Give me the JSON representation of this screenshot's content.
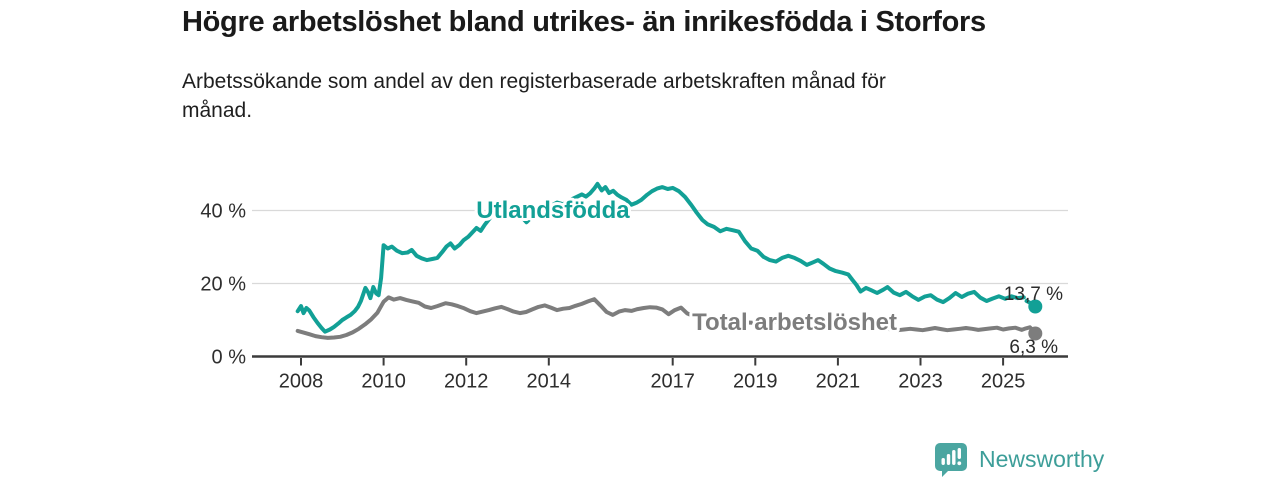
{
  "header": {
    "title": "Högre arbetslöshet bland utrikes- än inrikesfödda i Storfors",
    "subtitle": "Arbetssökande som andel av den registerbaserade arbetskraften månad för\nmånad."
  },
  "footer": {
    "brand": "Newsworthy",
    "brand_color": "#3d9e99",
    "icon": "bar-chart-speech-bubble-icon",
    "icon_color": "#4ba6a1"
  },
  "chart_data": {
    "type": "line",
    "title": "Högre arbetslöshet bland utrikes- än inrikesfödda i Storfors",
    "subtitle": "Arbetssökande som andel av den registerbaserade arbetskraften månad för månad.",
    "grid": "horizontal-gridlines-at-20-and-40",
    "legend_position": "inline-labels-on-lines",
    "x_range": [
      2007.9,
      2026.5
    ],
    "ylim": [
      0,
      50
    ],
    "axis_color": "#3b3b3b",
    "grid_color": "#d9d9d9",
    "text_color": "#2e2e2e",
    "x_ticks": [
      {
        "label": "2008",
        "year": 2008
      },
      {
        "label": "2010",
        "year": 2010
      },
      {
        "label": "2012",
        "year": 2012
      },
      {
        "label": "2014",
        "year": 2014
      },
      {
        "label": "2017",
        "year": 2017
      },
      {
        "label": "2019",
        "year": 2019
      },
      {
        "label": "2021",
        "year": 2021
      },
      {
        "label": "2023",
        "year": 2023
      },
      {
        "label": "2025",
        "year": 2025
      }
    ],
    "y_ticks": [
      {
        "label": "0 %",
        "value": 0
      },
      {
        "label": "20 %",
        "value": 20
      },
      {
        "label": "40 %",
        "value": 40
      }
    ],
    "series": [
      {
        "name": "Utlandsfödda",
        "color": "#12a096",
        "label_pos": {
          "x": 2014.1,
          "v": 40.1
        },
        "points": [
          [
            2007.92,
            12.4
          ],
          [
            2008.0,
            13.8
          ],
          [
            2008.06,
            11.9
          ],
          [
            2008.13,
            13.3
          ],
          [
            2008.2,
            12.6
          ],
          [
            2008.3,
            10.8
          ],
          [
            2008.4,
            9.2
          ],
          [
            2008.5,
            7.8
          ],
          [
            2008.58,
            6.8
          ],
          [
            2008.7,
            7.4
          ],
          [
            2008.8,
            8.1
          ],
          [
            2008.9,
            9.0
          ],
          [
            2009.0,
            10.0
          ],
          [
            2009.1,
            10.7
          ],
          [
            2009.2,
            11.4
          ],
          [
            2009.3,
            12.4
          ],
          [
            2009.38,
            13.6
          ],
          [
            2009.45,
            15.2
          ],
          [
            2009.5,
            16.8
          ],
          [
            2009.56,
            18.8
          ],
          [
            2009.63,
            17.5
          ],
          [
            2009.68,
            16.0
          ],
          [
            2009.75,
            19.0
          ],
          [
            2009.82,
            17.3
          ],
          [
            2009.88,
            16.8
          ],
          [
            2009.94,
            21.5
          ],
          [
            2010.0,
            30.5
          ],
          [
            2010.1,
            29.6
          ],
          [
            2010.2,
            30.1
          ],
          [
            2010.32,
            29.0
          ],
          [
            2010.45,
            28.3
          ],
          [
            2010.58,
            28.5
          ],
          [
            2010.68,
            29.2
          ],
          [
            2010.8,
            27.6
          ],
          [
            2010.92,
            26.9
          ],
          [
            2011.05,
            26.4
          ],
          [
            2011.18,
            26.7
          ],
          [
            2011.3,
            27.0
          ],
          [
            2011.42,
            28.6
          ],
          [
            2011.52,
            30.1
          ],
          [
            2011.62,
            31.0
          ],
          [
            2011.72,
            29.6
          ],
          [
            2011.84,
            30.6
          ],
          [
            2011.94,
            31.9
          ],
          [
            2012.05,
            32.8
          ],
          [
            2012.15,
            34.0
          ],
          [
            2012.25,
            35.2
          ],
          [
            2012.35,
            34.4
          ],
          [
            2012.45,
            36.1
          ],
          [
            2012.58,
            38.0
          ],
          [
            2012.7,
            40.0
          ],
          [
            2012.82,
            39.4
          ],
          [
            2012.94,
            40.8
          ],
          [
            2013.08,
            41.2
          ],
          [
            2013.22,
            39.6
          ],
          [
            2013.35,
            38.1
          ],
          [
            2013.46,
            36.8
          ],
          [
            2013.6,
            38.4
          ],
          [
            2013.75,
            40.0
          ],
          [
            2013.9,
            40.9
          ],
          [
            2014.05,
            41.3
          ],
          [
            2014.2,
            42.2
          ],
          [
            2014.35,
            41.7
          ],
          [
            2014.5,
            42.8
          ],
          [
            2014.65,
            43.6
          ],
          [
            2014.8,
            44.4
          ],
          [
            2014.9,
            43.8
          ],
          [
            2015.0,
            44.7
          ],
          [
            2015.1,
            46.0
          ],
          [
            2015.18,
            47.3
          ],
          [
            2015.28,
            45.5
          ],
          [
            2015.37,
            46.4
          ],
          [
            2015.46,
            44.8
          ],
          [
            2015.56,
            45.4
          ],
          [
            2015.66,
            44.3
          ],
          [
            2015.76,
            43.6
          ],
          [
            2015.88,
            42.9
          ],
          [
            2016.0,
            41.6
          ],
          [
            2016.12,
            42.1
          ],
          [
            2016.24,
            42.9
          ],
          [
            2016.38,
            44.3
          ],
          [
            2016.5,
            45.3
          ],
          [
            2016.62,
            46.0
          ],
          [
            2016.75,
            46.4
          ],
          [
            2016.88,
            45.9
          ],
          [
            2017.0,
            46.2
          ],
          [
            2017.15,
            45.3
          ],
          [
            2017.3,
            43.7
          ],
          [
            2017.45,
            41.5
          ],
          [
            2017.58,
            39.4
          ],
          [
            2017.72,
            37.4
          ],
          [
            2017.85,
            36.2
          ],
          [
            2018.0,
            35.5
          ],
          [
            2018.15,
            34.3
          ],
          [
            2018.3,
            35.0
          ],
          [
            2018.45,
            34.6
          ],
          [
            2018.6,
            34.2
          ],
          [
            2018.75,
            31.6
          ],
          [
            2018.9,
            29.6
          ],
          [
            2019.05,
            29.0
          ],
          [
            2019.2,
            27.3
          ],
          [
            2019.35,
            26.4
          ],
          [
            2019.5,
            26.0
          ],
          [
            2019.65,
            27.0
          ],
          [
            2019.8,
            27.6
          ],
          [
            2019.95,
            27.0
          ],
          [
            2020.1,
            26.2
          ],
          [
            2020.25,
            25.1
          ],
          [
            2020.4,
            25.8
          ],
          [
            2020.52,
            26.4
          ],
          [
            2020.65,
            25.4
          ],
          [
            2020.8,
            24.1
          ],
          [
            2020.95,
            23.4
          ],
          [
            2021.1,
            23.0
          ],
          [
            2021.25,
            22.5
          ],
          [
            2021.35,
            21.0
          ],
          [
            2021.45,
            19.6
          ],
          [
            2021.55,
            17.8
          ],
          [
            2021.68,
            18.8
          ],
          [
            2021.8,
            18.2
          ],
          [
            2021.95,
            17.4
          ],
          [
            2022.1,
            18.3
          ],
          [
            2022.2,
            19.0
          ],
          [
            2022.35,
            17.5
          ],
          [
            2022.5,
            16.8
          ],
          [
            2022.65,
            17.7
          ],
          [
            2022.8,
            16.5
          ],
          [
            2022.95,
            15.5
          ],
          [
            2023.1,
            16.4
          ],
          [
            2023.25,
            16.8
          ],
          [
            2023.4,
            15.6
          ],
          [
            2023.55,
            14.9
          ],
          [
            2023.7,
            16.0
          ],
          [
            2023.85,
            17.4
          ],
          [
            2024.0,
            16.3
          ],
          [
            2024.15,
            17.2
          ],
          [
            2024.3,
            17.7
          ],
          [
            2024.45,
            16.1
          ],
          [
            2024.6,
            15.2
          ],
          [
            2024.75,
            15.9
          ],
          [
            2024.9,
            16.5
          ],
          [
            2025.05,
            15.8
          ],
          [
            2025.2,
            16.5
          ],
          [
            2025.35,
            16.0
          ],
          [
            2025.5,
            16.2
          ]
        ],
        "gap_segment": [
          [
            2025.57,
            15.2
          ],
          [
            2025.64,
            14.8
          ]
        ],
        "end_dot": {
          "x": 2025.78,
          "v": 13.7
        },
        "end_label": {
          "text": "13,7 %",
          "x": 2026.45,
          "v": 15.5
        }
      },
      {
        "name": "Total arbetslöshet",
        "color": "#7d7d7d",
        "label_pos": {
          "x": 2019.95,
          "v": 9.45
        },
        "points": [
          [
            2007.92,
            7.0
          ],
          [
            2008.05,
            6.6
          ],
          [
            2008.2,
            6.1
          ],
          [
            2008.35,
            5.6
          ],
          [
            2008.5,
            5.3
          ],
          [
            2008.65,
            5.1
          ],
          [
            2008.8,
            5.2
          ],
          [
            2008.95,
            5.4
          ],
          [
            2009.1,
            5.9
          ],
          [
            2009.25,
            6.6
          ],
          [
            2009.4,
            7.6
          ],
          [
            2009.55,
            8.8
          ],
          [
            2009.7,
            10.2
          ],
          [
            2009.85,
            12.0
          ],
          [
            2010.0,
            15.0
          ],
          [
            2010.12,
            16.2
          ],
          [
            2010.25,
            15.6
          ],
          [
            2010.4,
            16.0
          ],
          [
            2010.55,
            15.5
          ],
          [
            2010.7,
            15.1
          ],
          [
            2010.85,
            14.7
          ],
          [
            2011.0,
            13.7
          ],
          [
            2011.15,
            13.3
          ],
          [
            2011.3,
            13.8
          ],
          [
            2011.5,
            14.6
          ],
          [
            2011.65,
            14.3
          ],
          [
            2011.8,
            13.8
          ],
          [
            2011.95,
            13.2
          ],
          [
            2012.1,
            12.4
          ],
          [
            2012.25,
            11.9
          ],
          [
            2012.4,
            12.3
          ],
          [
            2012.55,
            12.7
          ],
          [
            2012.7,
            13.2
          ],
          [
            2012.85,
            13.6
          ],
          [
            2013.0,
            13.0
          ],
          [
            2013.15,
            12.3
          ],
          [
            2013.3,
            11.9
          ],
          [
            2013.45,
            12.2
          ],
          [
            2013.6,
            12.9
          ],
          [
            2013.75,
            13.6
          ],
          [
            2013.9,
            14.0
          ],
          [
            2014.05,
            13.4
          ],
          [
            2014.2,
            12.7
          ],
          [
            2014.35,
            13.1
          ],
          [
            2014.5,
            13.3
          ],
          [
            2014.65,
            13.9
          ],
          [
            2014.8,
            14.4
          ],
          [
            2014.95,
            15.1
          ],
          [
            2015.1,
            15.7
          ],
          [
            2015.25,
            14.0
          ],
          [
            2015.4,
            12.2
          ],
          [
            2015.55,
            11.4
          ],
          [
            2015.7,
            12.3
          ],
          [
            2015.85,
            12.7
          ],
          [
            2016.0,
            12.5
          ],
          [
            2016.15,
            13.0
          ],
          [
            2016.3,
            13.3
          ],
          [
            2016.45,
            13.5
          ],
          [
            2016.6,
            13.4
          ],
          [
            2016.75,
            12.9
          ],
          [
            2016.9,
            11.6
          ],
          [
            2017.05,
            12.7
          ],
          [
            2017.2,
            13.4
          ],
          [
            2017.35,
            11.8
          ],
          [
            2017.5,
            11.1
          ],
          [
            2017.7,
            10.6
          ],
          [
            2017.9,
            10.2
          ],
          [
            2018.1,
            10.0
          ],
          [
            2018.4,
            9.7
          ],
          [
            2018.7,
            9.4
          ],
          [
            2019.0,
            9.2
          ],
          [
            2019.3,
            9.3
          ],
          [
            2019.6,
            9.5
          ],
          [
            2019.9,
            9.8
          ],
          [
            2020.2,
            10.5
          ],
          [
            2020.5,
            10.8
          ],
          [
            2020.8,
            10.3
          ],
          [
            2021.1,
            9.7
          ],
          [
            2021.4,
            9.0
          ],
          [
            2021.7,
            8.4
          ],
          [
            2021.95,
            8.0
          ],
          [
            2022.15,
            7.7
          ],
          [
            2022.3,
            7.4
          ],
          [
            2022.45,
            7.2
          ],
          [
            2022.6,
            7.4
          ],
          [
            2022.75,
            7.6
          ],
          [
            2022.9,
            7.4
          ],
          [
            2023.05,
            7.2
          ],
          [
            2023.2,
            7.5
          ],
          [
            2023.35,
            7.8
          ],
          [
            2023.5,
            7.5
          ],
          [
            2023.65,
            7.2
          ],
          [
            2023.8,
            7.4
          ],
          [
            2023.95,
            7.6
          ],
          [
            2024.1,
            7.8
          ],
          [
            2024.25,
            7.6
          ],
          [
            2024.4,
            7.3
          ],
          [
            2024.55,
            7.5
          ],
          [
            2024.7,
            7.7
          ],
          [
            2024.85,
            7.9
          ],
          [
            2025.0,
            7.4
          ],
          [
            2025.15,
            7.7
          ],
          [
            2025.3,
            7.9
          ],
          [
            2025.45,
            7.3
          ],
          [
            2025.55,
            7.7
          ],
          [
            2025.65,
            8.0
          ],
          [
            2025.72,
            7.2
          ]
        ],
        "end_dot": {
          "x": 2025.78,
          "v": 6.3
        },
        "end_label": {
          "text": "6,3 %",
          "x": 2026.33,
          "v": 1.0
        }
      }
    ]
  }
}
